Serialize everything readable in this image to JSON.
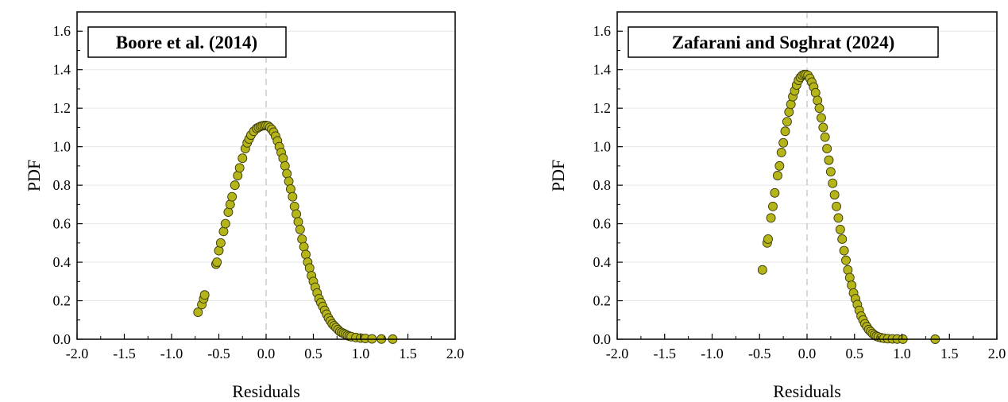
{
  "chart_data": [
    {
      "type": "scatter",
      "title": "Boore et al. (2014)",
      "xlabel": "Residuals",
      "ylabel": "PDF",
      "xlim": [
        -2.0,
        2.0
      ],
      "ylim": [
        0.0,
        1.7
      ],
      "xticks": [
        "-2.0",
        "-1.5",
        "-1.0",
        "-0.5",
        "0.0",
        "0.5",
        "1.0",
        "1.5",
        "2.0"
      ],
      "yticks": [
        "0.0",
        "0.2",
        "0.4",
        "0.6",
        "0.8",
        "1.0",
        "1.2",
        "1.4",
        "1.6"
      ],
      "grid": "horizontal",
      "reference_line_x": 0.0,
      "marker_color": "#b5b51a",
      "marker_edge": "#3a3a0a",
      "x": [
        -0.72,
        -0.68,
        -0.66,
        -0.65,
        -0.53,
        -0.52,
        -0.5,
        -0.48,
        -0.45,
        -0.43,
        -0.4,
        -0.38,
        -0.36,
        -0.33,
        -0.3,
        -0.28,
        -0.25,
        -0.22,
        -0.2,
        -0.18,
        -0.16,
        -0.13,
        -0.1,
        -0.08,
        -0.06,
        -0.04,
        -0.02,
        0.0,
        0.02,
        0.04,
        0.06,
        0.08,
        0.1,
        0.12,
        0.14,
        0.16,
        0.18,
        0.2,
        0.22,
        0.24,
        0.26,
        0.28,
        0.3,
        0.32,
        0.34,
        0.36,
        0.38,
        0.4,
        0.42,
        0.44,
        0.46,
        0.48,
        0.5,
        0.52,
        0.54,
        0.56,
        0.58,
        0.6,
        0.62,
        0.64,
        0.66,
        0.68,
        0.7,
        0.72,
        0.74,
        0.76,
        0.78,
        0.8,
        0.82,
        0.84,
        0.86,
        0.88,
        0.9,
        0.95,
        1.0,
        1.05,
        1.12,
        1.22,
        1.34
      ],
      "y": [
        0.14,
        0.18,
        0.21,
        0.23,
        0.39,
        0.4,
        0.46,
        0.5,
        0.56,
        0.6,
        0.66,
        0.7,
        0.74,
        0.8,
        0.85,
        0.89,
        0.94,
        0.99,
        1.02,
        1.04,
        1.06,
        1.08,
        1.095,
        1.1,
        1.105,
        1.108,
        1.11,
        1.11,
        1.108,
        1.1,
        1.09,
        1.075,
        1.055,
        1.03,
        1.0,
        0.97,
        0.94,
        0.9,
        0.86,
        0.82,
        0.78,
        0.74,
        0.69,
        0.65,
        0.61,
        0.57,
        0.52,
        0.48,
        0.44,
        0.4,
        0.37,
        0.33,
        0.3,
        0.27,
        0.24,
        0.21,
        0.19,
        0.17,
        0.15,
        0.13,
        0.11,
        0.095,
        0.08,
        0.07,
        0.06,
        0.05,
        0.04,
        0.035,
        0.03,
        0.025,
        0.02,
        0.016,
        0.013,
        0.009,
        0.006,
        0.004,
        0.002,
        0.001,
        0.0005
      ]
    },
    {
      "type": "scatter",
      "title": "Zafarani and Soghrat (2024)",
      "xlabel": "Residuals",
      "ylabel": "PDF",
      "xlim": [
        -2.0,
        2.0
      ],
      "ylim": [
        0.0,
        1.7
      ],
      "xticks": [
        "-2.0",
        "-1.5",
        "-1.0",
        "-0.5",
        "0.0",
        "0.5",
        "1.0",
        "1.5",
        "2.0"
      ],
      "yticks": [
        "0.0",
        "0.2",
        "0.4",
        "0.6",
        "0.8",
        "1.0",
        "1.2",
        "1.4",
        "1.6"
      ],
      "grid": "horizontal",
      "reference_line_x": 0.0,
      "marker_color": "#b5b51a",
      "marker_edge": "#3a3a0a",
      "x": [
        -0.47,
        -0.42,
        -0.41,
        -0.38,
        -0.36,
        -0.34,
        -0.31,
        -0.29,
        -0.27,
        -0.25,
        -0.23,
        -0.21,
        -0.19,
        -0.17,
        -0.15,
        -0.13,
        -0.11,
        -0.09,
        -0.07,
        -0.05,
        -0.03,
        -0.01,
        0.01,
        0.03,
        0.05,
        0.07,
        0.09,
        0.11,
        0.13,
        0.15,
        0.17,
        0.19,
        0.21,
        0.23,
        0.25,
        0.27,
        0.29,
        0.31,
        0.33,
        0.35,
        0.37,
        0.39,
        0.41,
        0.43,
        0.45,
        0.47,
        0.49,
        0.51,
        0.53,
        0.55,
        0.57,
        0.59,
        0.61,
        0.63,
        0.65,
        0.67,
        0.69,
        0.71,
        0.73,
        0.75,
        0.78,
        0.81,
        0.85,
        0.9,
        0.95,
        1.01,
        1.35
      ],
      "y": [
        0.36,
        0.5,
        0.52,
        0.63,
        0.69,
        0.76,
        0.85,
        0.9,
        0.97,
        1.02,
        1.08,
        1.13,
        1.18,
        1.22,
        1.26,
        1.29,
        1.32,
        1.345,
        1.36,
        1.37,
        1.375,
        1.375,
        1.37,
        1.355,
        1.335,
        1.31,
        1.28,
        1.24,
        1.2,
        1.15,
        1.1,
        1.05,
        0.99,
        0.93,
        0.87,
        0.81,
        0.75,
        0.69,
        0.63,
        0.57,
        0.52,
        0.46,
        0.41,
        0.36,
        0.32,
        0.28,
        0.24,
        0.21,
        0.18,
        0.15,
        0.12,
        0.1,
        0.08,
        0.065,
        0.05,
        0.04,
        0.03,
        0.022,
        0.016,
        0.012,
        0.008,
        0.005,
        0.003,
        0.002,
        0.001,
        0.0005,
        0.0
      ]
    }
  ]
}
